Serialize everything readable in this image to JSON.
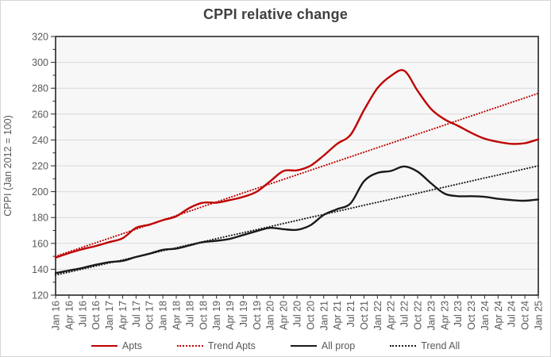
{
  "title": "CPPI relative change",
  "y_axis_title": "CPPI (Jan 2012 = 100)",
  "colors": {
    "accent_red": "#c00000",
    "line_black": "#1a1a1a",
    "grid": "#d9d9d9",
    "frame": "#262626",
    "plot_bg": "#f7f7f7",
    "title_text": "#404040",
    "tick_text": "#595959"
  },
  "legend": {
    "items": [
      {
        "label": "Apts",
        "color": "#c00000",
        "style": "solid"
      },
      {
        "label": "Trend Apts",
        "color": "#c00000",
        "style": "dotted"
      },
      {
        "label": "All prop",
        "color": "#1a1a1a",
        "style": "solid"
      },
      {
        "label": "Trend All",
        "color": "#1a1a1a",
        "style": "dotted"
      }
    ]
  },
  "chart_data": {
    "type": "line",
    "title": "CPPI relative change",
    "xlabel": "",
    "ylabel": "CPPI (Jan 2012 = 100)",
    "ylim": [
      120,
      320
    ],
    "ytick_step": 20,
    "yminor_step": 10,
    "grid": true,
    "legend_position": "bottom",
    "categories": [
      "Jan 16",
      "Apr 16",
      "Jul 16",
      "Oct 16",
      "Jan 17",
      "Apr 17",
      "Jul 17",
      "Oct 17",
      "Jan 18",
      "Apr 18",
      "Jul 18",
      "Oct 18",
      "Jan 19",
      "Apr 19",
      "Jul 19",
      "Oct 19",
      "Jan 20",
      "Apr 20",
      "Jul 20",
      "Oct 20",
      "Jan 21",
      "Apr 21",
      "Jul 21",
      "Oct 21",
      "Jan 22",
      "Apr 22",
      "Jul 22",
      "Oct 22",
      "Jan 23",
      "Apr 23",
      "Jul 23",
      "Oct 23",
      "Jan 24",
      "Apr 24",
      "Jul 24",
      "Oct 24",
      "Jan 25"
    ],
    "series": [
      {
        "name": "Apts",
        "color": "#c00000",
        "line_style": "solid",
        "values": [
          149,
          152.5,
          155.5,
          158,
          161,
          164,
          172,
          174.5,
          178,
          181,
          187.5,
          191.5,
          191.5,
          193.5,
          196,
          200,
          208,
          216,
          216.5,
          220,
          228,
          237,
          244,
          263,
          280,
          289.5,
          293.5,
          278,
          264,
          256,
          251,
          245.5,
          241,
          238.5,
          237,
          237.5,
          240.5
        ]
      },
      {
        "name": "Trend Apts",
        "color": "#c00000",
        "line_style": "dotted",
        "values": [
          150,
          153.5,
          157,
          160.5,
          164,
          167.5,
          171,
          174.5,
          178,
          181.5,
          185,
          188.5,
          192,
          195.5,
          199,
          202.5,
          206,
          209.5,
          213,
          216.5,
          220,
          223.5,
          227,
          230.5,
          234,
          237.5,
          241,
          244.5,
          248,
          251.5,
          255,
          258.5,
          262,
          265.5,
          269,
          272.5,
          276
        ]
      },
      {
        "name": "All prop",
        "color": "#1a1a1a",
        "line_style": "solid",
        "values": [
          137,
          139,
          141,
          143.5,
          145.5,
          146.5,
          149.5,
          152,
          155,
          156,
          158.5,
          161,
          162,
          163.5,
          166.5,
          169.5,
          172,
          171,
          170.5,
          174,
          182,
          186.5,
          191,
          208,
          214.5,
          216,
          219.5,
          215.5,
          206.5,
          198.5,
          196.5,
          196.5,
          196,
          194.5,
          193.5,
          193,
          194
        ]
      },
      {
        "name": "Trend All",
        "color": "#1a1a1a",
        "line_style": "dotted",
        "values": [
          135.5,
          137.8,
          140.2,
          142.5,
          144.9,
          147.2,
          149.6,
          151.9,
          154.3,
          156.6,
          159,
          161.3,
          163.7,
          166,
          168.3,
          170.7,
          173,
          175.4,
          177.7,
          180.1,
          182.4,
          184.8,
          187.1,
          189.5,
          191.8,
          194.1,
          196.5,
          198.8,
          201.2,
          203.5,
          205.9,
          208.2,
          210.6,
          212.9,
          215.3,
          217.6,
          220
        ]
      }
    ]
  }
}
